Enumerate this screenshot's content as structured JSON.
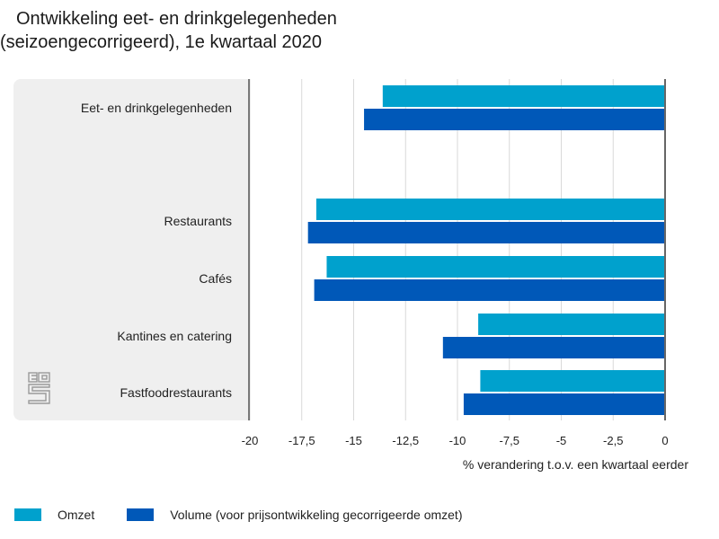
{
  "chart_data": {
    "type": "bar",
    "orientation": "horizontal",
    "title": "Ontwikkeling eet- en drinkgelegenheden (seizoengecorrigeerd), 1e kwartaal 2020",
    "title_lines": [
      "Ontwikkeling eet- en drinkgelegenheden",
      "(seizoengecorrigeerd), 1e kwartaal 2020"
    ],
    "categories": [
      "Eet- en drinkgelegenheden",
      "Restaurants",
      "Cafés",
      "Kantines en catering",
      "Fastfoodrestaurants"
    ],
    "series": [
      {
        "name": "Omzet",
        "color": "#00a1cd",
        "values": [
          -13.6,
          -16.8,
          -16.3,
          -9.0,
          -8.9
        ]
      },
      {
        "name": "Volume (voor prijsontwikkeling gecorrigeerde omzet)",
        "color": "#0058b8",
        "values": [
          -14.5,
          -17.2,
          -16.9,
          -10.7,
          -9.7
        ]
      }
    ],
    "xlabel": "% verandering t.o.v. een kwartaal eerder",
    "ylabel": "",
    "xlim": [
      -20,
      0
    ],
    "xticks": [
      -20,
      -17.5,
      -15,
      -12.5,
      -10,
      -7.5,
      -5,
      -2.5,
      0
    ],
    "xtick_labels": [
      "-20",
      "-17,5",
      "-15",
      "-12,5",
      "-10",
      "-7,5",
      "-5",
      "-2,5",
      "0"
    ],
    "grid": true,
    "legend_position": "bottom-left",
    "logo": "cbs-logo-icon"
  }
}
